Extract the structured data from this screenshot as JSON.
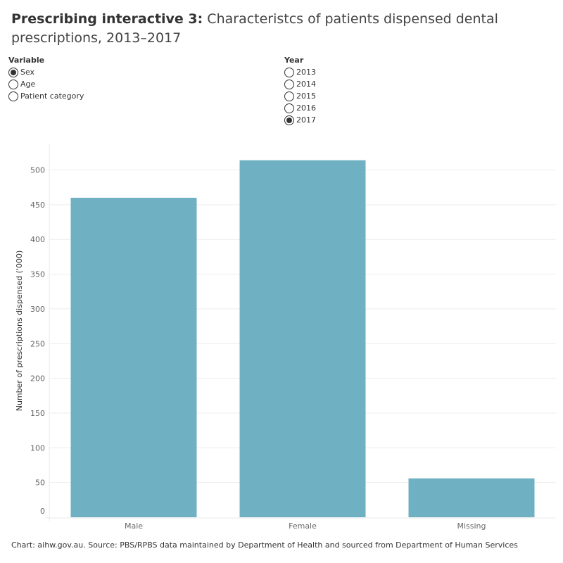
{
  "title": {
    "bold": "Prescribing interactive 3:",
    "rest": " Characteristcs of patients dispensed dental prescriptions, 2013–2017"
  },
  "variable": {
    "label": "Variable",
    "options": [
      {
        "label": "Sex",
        "selected": true
      },
      {
        "label": "Age",
        "selected": false
      },
      {
        "label": "Patient category",
        "selected": false
      }
    ]
  },
  "year": {
    "label": "Year",
    "options": [
      {
        "label": "2013",
        "selected": false
      },
      {
        "label": "2014",
        "selected": false
      },
      {
        "label": "2015",
        "selected": false
      },
      {
        "label": "2016",
        "selected": false
      },
      {
        "label": "2017",
        "selected": true
      }
    ]
  },
  "chart_data": {
    "type": "bar",
    "categories": [
      "Male",
      "Female",
      "Missing"
    ],
    "values": [
      460,
      514,
      56
    ],
    "ylabel": "Number of prescriptions dispensed ('000)",
    "xlabel": "",
    "ylim": [
      0,
      537
    ],
    "yticks": [
      0,
      50,
      100,
      150,
      200,
      250,
      300,
      350,
      400,
      450,
      500
    ],
    "grid": true,
    "bar_color": "#6fb1c2"
  },
  "footer": "Chart: aihw.gov.au. Source: PBS/RPBS data maintained by Department of Health and sourced from Department of Human Services"
}
